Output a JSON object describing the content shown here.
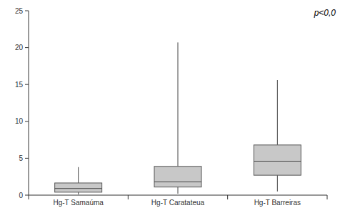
{
  "chart_data": {
    "type": "box",
    "annotation": "p<0,0",
    "categories": [
      "Hg-T Samaúma",
      "Hg-T Caratateua",
      "Hg-T Barreiras"
    ],
    "values": [
      [
        0.1,
        0.4,
        0.9,
        1.65,
        3.8
      ],
      [
        0.2,
        1.1,
        1.8,
        3.9,
        20.7
      ],
      [
        0.5,
        2.7,
        4.6,
        6.8,
        15.6
      ]
    ],
    "color": "#c8c8c8",
    "ylim": [
      0,
      25
    ],
    "yticks": [
      0,
      5,
      10,
      15,
      20,
      25
    ]
  }
}
